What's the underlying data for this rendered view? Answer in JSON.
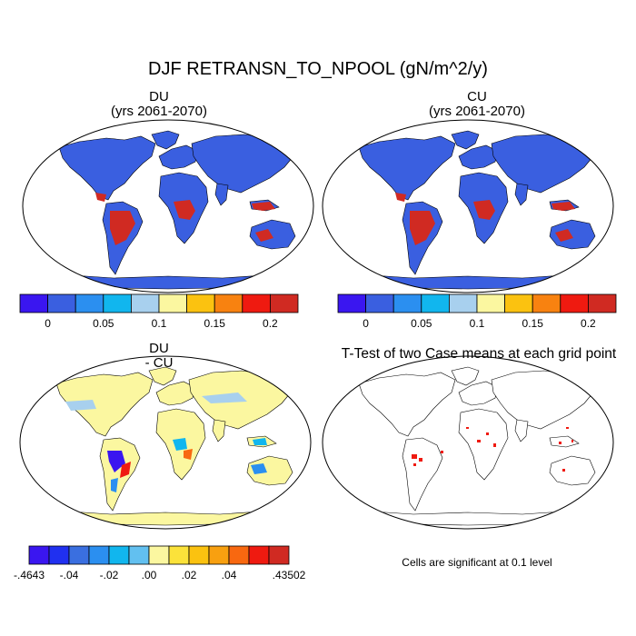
{
  "title": "DJF RETRANSN_TO_NPOOL (gN/m^2/y)",
  "panels": [
    {
      "id": "DU",
      "title_line1": "DU",
      "title_line2": "(yrs 2061-2070)"
    },
    {
      "id": "CU",
      "title_line1": "CU",
      "title_line2": "(yrs 2061-2070)"
    },
    {
      "id": "diff",
      "title_line1": "DU",
      "title_line2": "- CU"
    },
    {
      "id": "ttest",
      "title_line1": "T-Test of two Case means at each grid point",
      "title_line2": ""
    }
  ],
  "colorbar_main": {
    "colors": [
      "#3a16f0",
      "#3a5fe0",
      "#2b8ff0",
      "#11b6ee",
      "#a8d0ee",
      "#fbf7a0",
      "#fbc210",
      "#f88210",
      "#ef1a10",
      "#d02a22"
    ],
    "tick_labels": [
      "0",
      "0.05",
      "0.1",
      "0.15",
      "0.2"
    ]
  },
  "colorbar_diff": {
    "colors": [
      "#3a16f0",
      "#2030f0",
      "#3a6fe0",
      "#2b8ff0",
      "#11b6ee",
      "#62c0f0",
      "#fbf7a0",
      "#fbe23a",
      "#fbc210",
      "#f8a010",
      "#f86810",
      "#ef1a10",
      "#d02a22"
    ],
    "tick_labels": [
      "-.4643",
      "-.04",
      "-.02",
      ".00",
      ".02",
      ".04",
      ".43502"
    ]
  },
  "map_colors": {
    "land_main": "#3a5fe0",
    "land_diff": "#fbf7a0",
    "hotspot": "#d02a22",
    "significant": "#ef1a10"
  },
  "note": "Cells are significant at 0.1 level"
}
